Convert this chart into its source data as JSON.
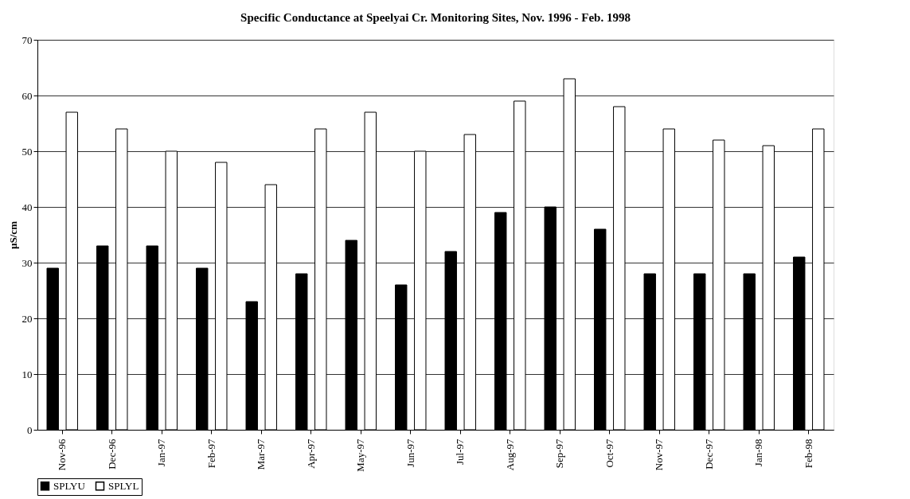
{
  "chart_data": {
    "type": "bar",
    "title": "Specific Conductance at Speelyai Cr. Monitoring Sites, Nov. 1996 - Feb. 1998",
    "ylabel": "µS/cm",
    "categories": [
      "Nov-96",
      "Dec-96",
      "Jan-97",
      "Feb-97",
      "Mar-97",
      "Apr-97",
      "May-97",
      "Jun-97",
      "Jul-97",
      "Aug-97",
      "Sep-97",
      "Oct-97",
      "Nov-97",
      "Dec-97",
      "Jan-98",
      "Feb-98"
    ],
    "series": [
      {
        "name": "SPLYU",
        "color": "#000000",
        "values": [
          29,
          33,
          33,
          29,
          23,
          28,
          34,
          26,
          32,
          39,
          40,
          36,
          28,
          28,
          28,
          31
        ]
      },
      {
        "name": "SPLYL",
        "color": "#ffffff",
        "values": [
          57,
          54,
          50,
          48,
          44,
          54,
          57,
          50,
          53,
          59,
          63,
          58,
          54,
          52,
          51,
          54
        ]
      }
    ],
    "ylim": [
      0,
      70
    ],
    "yticks": [
      0,
      10,
      20,
      30,
      40,
      50,
      60,
      70
    ],
    "grid": "y",
    "legend": "bottom"
  }
}
